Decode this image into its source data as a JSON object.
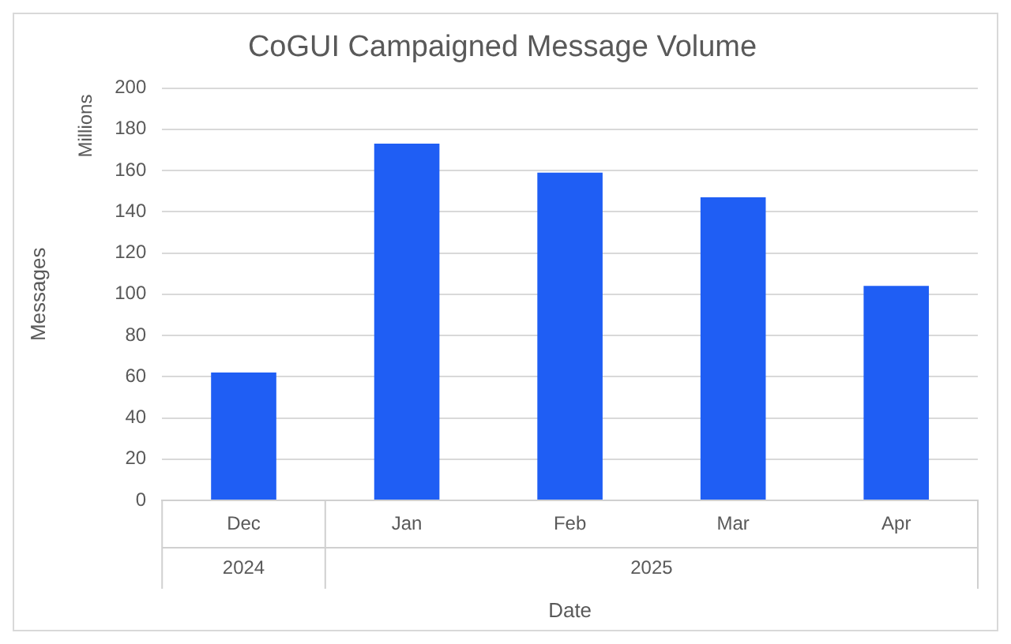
{
  "chart_data": {
    "type": "bar",
    "title": "CoGUI Campaigned Message Volume",
    "xlabel": "Date",
    "ylabel": "Messages",
    "categories": [
      "Dec",
      "Jan",
      "Feb",
      "Mar",
      "Apr"
    ],
    "values": [
      62,
      173,
      159,
      147,
      104
    ],
    "color": "#1f5ef4",
    "ylim": [
      0,
      200
    ],
    "yticks": [
      0,
      20,
      40,
      60,
      80,
      100,
      120,
      140,
      160,
      180,
      200
    ],
    "grid": "y",
    "annotations": [
      "Millions",
      "2024",
      "2025"
    ]
  }
}
